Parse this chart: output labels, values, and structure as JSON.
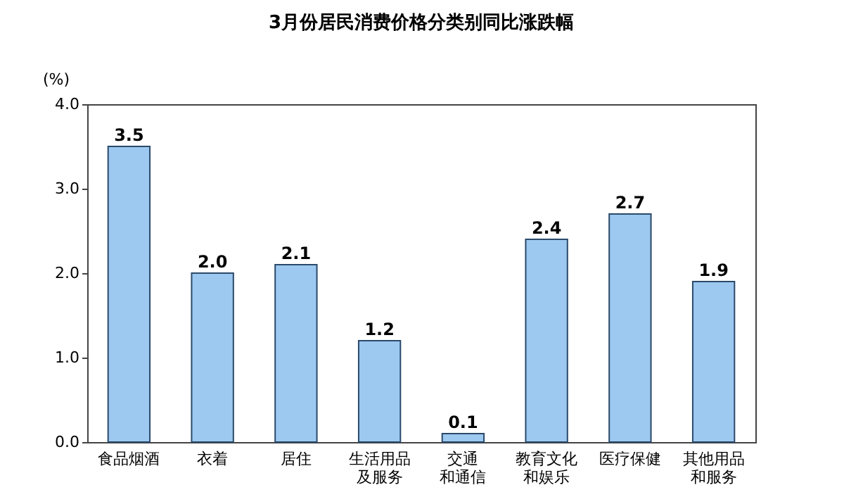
{
  "chart_data": {
    "type": "bar",
    "title": "3月份居民消费价格分类别同比涨跌幅",
    "ylabel": "(%)",
    "categories": [
      "食品烟酒",
      "衣着",
      "居住",
      "生活用品及服务",
      "交通和通信",
      "教育文化和娱乐",
      "医疗保健",
      "其他用品和服务"
    ],
    "values": [
      3.5,
      2.0,
      2.1,
      1.2,
      0.1,
      2.4,
      2.7,
      1.9
    ],
    "color": "#9dc8f0",
    "ylim": [
      0,
      4
    ],
    "yticks": [
      {
        "value": 0,
        "label": "0.0"
      },
      {
        "value": 1,
        "label": "1.0"
      },
      {
        "value": 2,
        "label": "2.0"
      },
      {
        "value": 3,
        "label": "3.0"
      },
      {
        "value": 4,
        "label": "4.0"
      }
    ],
    "value_labels": [
      "3.5",
      "2.0",
      "2.1",
      "1.2",
      "0.1",
      "2.4",
      "2.7",
      "1.9"
    ],
    "grid": false
  }
}
